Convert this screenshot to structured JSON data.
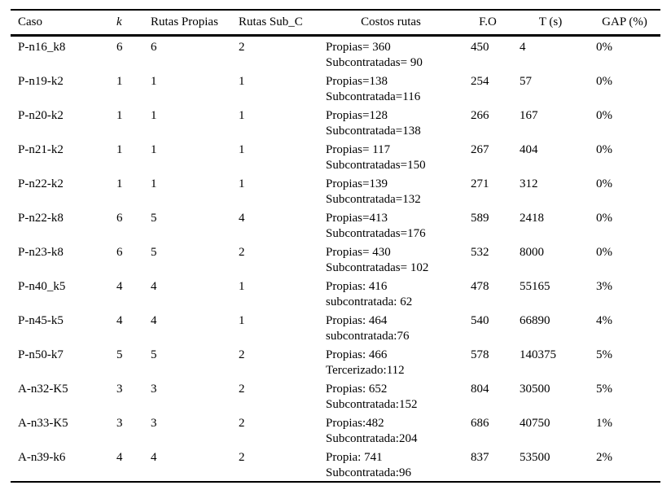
{
  "colors": {
    "background": "#ffffff",
    "text": "#000000",
    "rule": "#000000"
  },
  "columns": {
    "caso": "Caso",
    "k": "k",
    "rutas_propias": "Rutas Propias",
    "rutas_sub_c": "Rutas Sub_C",
    "costos_rutas": "Costos rutas",
    "fo": "F.O",
    "t_s": "T (s)",
    "gap": "GAP (%)"
  },
  "rows": [
    {
      "caso": "P-n16_k8",
      "k": "6",
      "rutas_propias": "6",
      "rutas_sub_c": "2",
      "costos": [
        "Propias= 360",
        "Subcontratadas= 90"
      ],
      "fo": "450",
      "t_s": "4",
      "gap": "0%"
    },
    {
      "caso": "P-n19-k2",
      "k": "1",
      "rutas_propias": "1",
      "rutas_sub_c": "1",
      "costos": [
        "Propias=138",
        "Subcontratada=116"
      ],
      "fo": "254",
      "t_s": "57",
      "gap": "0%"
    },
    {
      "caso": "P-n20-k2",
      "k": "1",
      "rutas_propias": "1",
      "rutas_sub_c": "1",
      "costos": [
        "Propias=128",
        "Subcontratada=138"
      ],
      "fo": "266",
      "t_s": "167",
      "gap": "0%"
    },
    {
      "caso": "P-n21-k2",
      "k": "1",
      "rutas_propias": "1",
      "rutas_sub_c": "1",
      "costos": [
        "Propias= 117",
        "Subcontratadas=150"
      ],
      "fo": "267",
      "t_s": "404",
      "gap": "0%"
    },
    {
      "caso": "P-n22-k2",
      "k": "1",
      "rutas_propias": "1",
      "rutas_sub_c": "1",
      "costos": [
        "Propias=139",
        "Subcontratada=132"
      ],
      "fo": "271",
      "t_s": "312",
      "gap": "0%"
    },
    {
      "caso": "P-n22-k8",
      "k": "6",
      "rutas_propias": "5",
      "rutas_sub_c": "4",
      "costos": [
        "Propias=413",
        "Subcontratadas=176"
      ],
      "fo": "589",
      "t_s": "2418",
      "gap": "0%"
    },
    {
      "caso": "P-n23-k8",
      "k": "6",
      "rutas_propias": "5",
      "rutas_sub_c": "2",
      "costos": [
        "Propias= 430",
        "Subcontratadas= 102"
      ],
      "fo": "532",
      "t_s": "8000",
      "gap": "0%"
    },
    {
      "caso": "P-n40_k5",
      "k": "4",
      "rutas_propias": "4",
      "rutas_sub_c": "1",
      "costos": [
        "Propias: 416",
        "subcontratada: 62"
      ],
      "fo": "478",
      "t_s": "55165",
      "gap": "3%"
    },
    {
      "caso": "P-n45-k5",
      "k": "4",
      "rutas_propias": "4",
      "rutas_sub_c": "1",
      "costos": [
        "Propias: 464",
        "subcontratada:76"
      ],
      "fo": "540",
      "t_s": "66890",
      "gap": "4%"
    },
    {
      "caso": "P-n50-k7",
      "k": "5",
      "rutas_propias": "5",
      "rutas_sub_c": "2",
      "costos": [
        "Propias: 466",
        "Tercerizado:112"
      ],
      "fo": "578",
      "t_s": "140375",
      "gap": "5%"
    },
    {
      "caso": "A-n32-K5",
      "k": "3",
      "rutas_propias": "3",
      "rutas_sub_c": "2",
      "costos": [
        "Propias: 652",
        "Subcontratada:152"
      ],
      "fo": "804",
      "t_s": "30500",
      "gap": "5%"
    },
    {
      "caso": "A-n33-K5",
      "k": "3",
      "rutas_propias": "3",
      "rutas_sub_c": "2",
      "costos": [
        "Propias:482",
        "Subcontratada:204"
      ],
      "fo": "686",
      "t_s": "40750",
      "gap": "1%"
    },
    {
      "caso": "A-n39-k6",
      "k": "4",
      "rutas_propias": "4",
      "rutas_sub_c": "2",
      "costos": [
        "Propia: 741",
        "Subcontratada:96"
      ],
      "fo": "837",
      "t_s": "53500",
      "gap": "2%"
    }
  ]
}
